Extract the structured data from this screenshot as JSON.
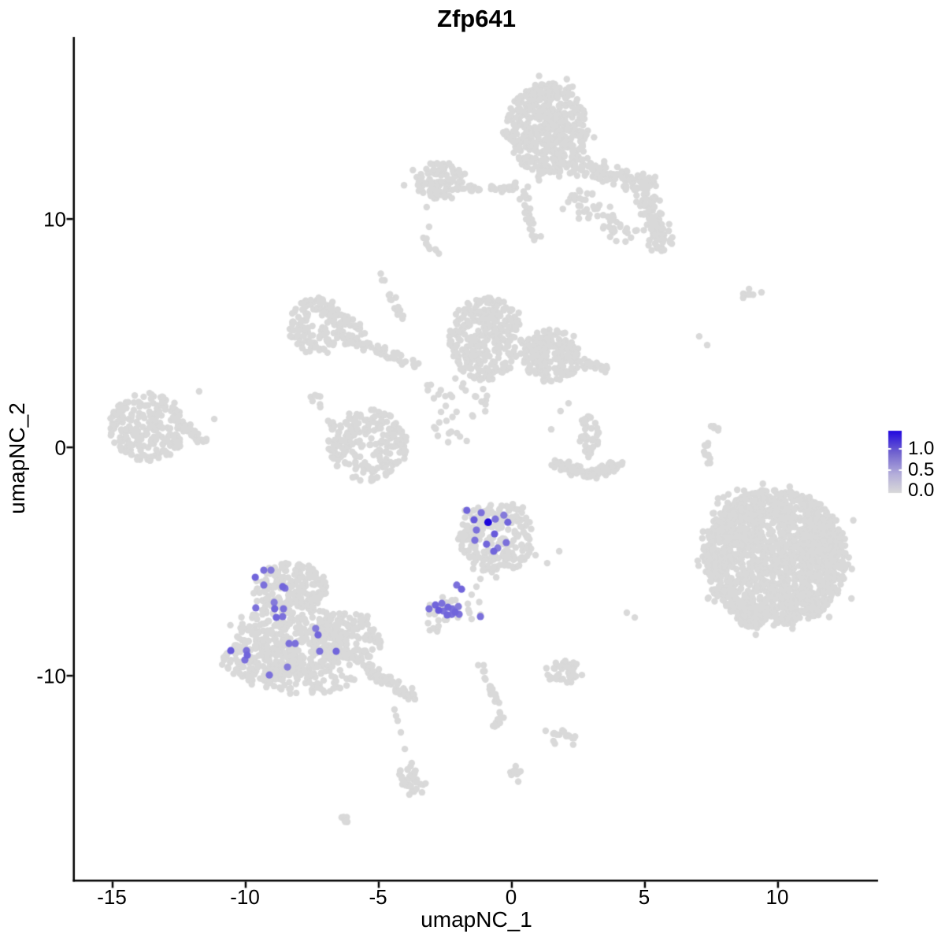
{
  "chart_data": {
    "type": "scatter",
    "title": "Zfp641",
    "x_axis": {
      "label": "umapNC_1",
      "ticks": [
        -15,
        -10,
        -5,
        0,
        5,
        10
      ],
      "tick_labels": [
        "-15",
        "-10",
        "-5",
        "0",
        "5",
        "10"
      ]
    },
    "y_axis": {
      "label": "umapNC_2",
      "ticks": [
        -10,
        0,
        10
      ],
      "tick_labels": [
        "-10",
        "0",
        "10"
      ]
    },
    "xlim": [
      -16.42,
      13.76
    ],
    "ylim": [
      -18.93,
      17.97
    ],
    "grid": false,
    "legend": {
      "position": "right",
      "labels": [
        "1.0",
        "0.5",
        "0.0"
      ],
      "values": [
        1.0,
        0.5,
        0.0
      ],
      "gradient_stops": [
        "#2208E0",
        "#7163CF",
        "#B4AEDA",
        "#D9D9D9"
      ],
      "gradient_positions": [
        0,
        0.35,
        0.7,
        1
      ]
    },
    "colors": {
      "background": "#FFFFFF",
      "axis": "#000000",
      "text": "#000000",
      "point_zero": "#D9D9D9",
      "gradient_low": "#D9D9D9",
      "gradient_high": "#1C06DC"
    },
    "point_radius_px": 4.2,
    "clusters": [
      {
        "name": "top-main",
        "shape": "ellipse",
        "x": 1.33,
        "y": 13.97,
        "rx": 1.54,
        "ry": 2.0,
        "count": 500
      },
      {
        "name": "top-chain-upper",
        "shape": "band",
        "x1": 1.7,
        "y1": 12.6,
        "x2": 5.3,
        "y2": 11.5,
        "width": 0.5,
        "count": 110
      },
      {
        "name": "top-chain-right",
        "shape": "band",
        "x1": 4.9,
        "y1": 11.6,
        "x2": 5.7,
        "y2": 8.6,
        "width": 0.55,
        "count": 110
      },
      {
        "name": "top-chain-mid",
        "shape": "band",
        "x1": 2.2,
        "y1": 11.0,
        "x2": 4.6,
        "y2": 9.2,
        "width": 0.7,
        "count": 55
      },
      {
        "name": "top-left-arm",
        "shape": "ellipse",
        "x": -2.72,
        "y": 11.66,
        "rx": 0.98,
        "ry": 0.85,
        "count": 110
      },
      {
        "name": "top-left-chain",
        "shape": "band",
        "x1": -1.78,
        "y1": 11.38,
        "x2": 0.24,
        "y2": 11.3,
        "width": 0.14,
        "count": 30
      },
      {
        "name": "below-top-trail",
        "shape": "band",
        "x1": 0.3,
        "y1": 11.66,
        "x2": 0.89,
        "y2": 9.07,
        "width": 0.25,
        "count": 30
      },
      {
        "name": "small-streak",
        "shape": "band",
        "x1": -3.46,
        "y1": 9.24,
        "x2": -2.75,
        "y2": 8.45,
        "width": 0.1,
        "count": 9
      },
      {
        "name": "mid-ring-upper",
        "shape": "ring",
        "x": -7.34,
        "y": 5.34,
        "rx": 1.12,
        "ry": 1.31,
        "hole": 0.42,
        "count": 150
      },
      {
        "name": "mid-band1",
        "shape": "band",
        "x1": -6.21,
        "y1": 4.76,
        "x2": -3.55,
        "y2": 3.66,
        "width": 0.3,
        "count": 60
      },
      {
        "name": "mid-band2",
        "shape": "band",
        "x1": -6.45,
        "y1": 5.79,
        "x2": -5.33,
        "y2": 4.93,
        "width": 0.18,
        "count": 18
      },
      {
        "name": "mid-vtrail",
        "shape": "band",
        "x1": -4.97,
        "y1": 7.59,
        "x2": -4.05,
        "y2": 5.52,
        "width": 0.16,
        "count": 16
      },
      {
        "name": "mid-central",
        "shape": "ellipse",
        "x": -0.98,
        "y": 4.76,
        "rx": 1.39,
        "ry": 1.82,
        "count": 320
      },
      {
        "name": "mid-right",
        "shape": "ellipse",
        "x": 1.48,
        "y": 4.0,
        "rx": 1.1,
        "ry": 1.16,
        "count": 200
      },
      {
        "name": "mid-right-arm",
        "shape": "band",
        "x1": 2.51,
        "y1": 3.79,
        "x2": 3.61,
        "y2": 3.31,
        "width": 0.25,
        "count": 26
      },
      {
        "name": "mid-sparse",
        "shape": "ellipse",
        "x": -2.22,
        "y": 1.83,
        "rx": 1.35,
        "ry": 1.7,
        "count": 40
      },
      {
        "name": "mid-ring-lower",
        "shape": "ring",
        "x": -5.41,
        "y": 0.1,
        "rx": 1.5,
        "ry": 1.58,
        "hole": 0.45,
        "count": 230
      },
      {
        "name": "mid-left-dots",
        "shape": "band",
        "x1": -7.46,
        "y1": 2.34,
        "x2": -6.66,
        "y2": 0.79,
        "width": 0.2,
        "count": 12
      },
      {
        "name": "far-left",
        "shape": "ellipse",
        "x": -13.67,
        "y": 0.9,
        "rx": 1.45,
        "ry": 1.5,
        "count": 240
      },
      {
        "name": "far-left-ext",
        "shape": "band",
        "x1": -12.3,
        "y1": 0.79,
        "x2": -11.48,
        "y2": 0.21,
        "width": 0.28,
        "count": 26
      },
      {
        "name": "crescent-left",
        "shape": "band",
        "x1": 1.48,
        "y1": -0.59,
        "x2": 2.81,
        "y2": -1.24,
        "width": 0.28,
        "count": 45
      },
      {
        "name": "crescent-right",
        "shape": "band",
        "x1": 2.81,
        "y1": -1.24,
        "x2": 4.14,
        "y2": -0.72,
        "width": 0.28,
        "count": 45
      },
      {
        "name": "crescent-top",
        "shape": "ellipse",
        "x": 2.9,
        "y": 0.55,
        "rx": 0.4,
        "ry": 0.85,
        "count": 38
      },
      {
        "name": "expr-mid-cluster",
        "shape": "ellipse",
        "x": -0.59,
        "y": -3.97,
        "rx": 1.44,
        "ry": 1.55,
        "count": 230
      },
      {
        "name": "expr-small-cluster",
        "shape": "ellipse",
        "x": -2.13,
        "y": -7.03,
        "rx": 1.1,
        "ry": 0.6,
        "count": 26
      },
      {
        "name": "below-expr-small",
        "shape": "ellipse",
        "x": -2.9,
        "y": -7.79,
        "rx": 0.28,
        "ry": 0.3,
        "count": 8
      },
      {
        "name": "bottomleft-top",
        "shape": "ellipse",
        "x": -8.28,
        "y": -6.1,
        "rx": 1.35,
        "ry": 1.05,
        "count": 160
      },
      {
        "name": "bottomleft-main",
        "shape": "ellipse",
        "x": -8.28,
        "y": -8.34,
        "rx": 2.1,
        "ry": 1.58,
        "count": 300
      },
      {
        "name": "bottomleft-left",
        "shape": "ellipse",
        "x": -9.47,
        "y": -9.38,
        "rx": 1.35,
        "ry": 1.05,
        "count": 130
      },
      {
        "name": "bottomleft-right",
        "shape": "ellipse",
        "x": -6.21,
        "y": -8.34,
        "rx": 1.35,
        "ry": 1.23,
        "count": 160
      },
      {
        "name": "bottomleft-bottom",
        "shape": "ellipse",
        "x": -7.69,
        "y": -10.14,
        "rx": 1.8,
        "ry": 0.7,
        "count": 100
      },
      {
        "name": "bottomleft-tail",
        "shape": "band",
        "x1": -5.62,
        "y1": -9.55,
        "x2": -3.61,
        "y2": -11.03,
        "width": 0.3,
        "count": 80
      },
      {
        "name": "bottom-trail-blob1",
        "shape": "ellipse",
        "x": -3.91,
        "y": -14.24,
        "rx": 0.32,
        "ry": 0.58,
        "count": 22
      },
      {
        "name": "bottom-trail-blob2",
        "shape": "ellipse",
        "x": -3.61,
        "y": -14.86,
        "rx": 0.45,
        "ry": 0.42,
        "count": 16
      },
      {
        "name": "bottom-streak",
        "shape": "band",
        "x1": -6.36,
        "y1": -16.17,
        "x2": -6.07,
        "y2": -16.62,
        "width": 0.1,
        "count": 8
      },
      {
        "name": "mid-bottom-trail1",
        "shape": "band",
        "x1": -1.18,
        "y1": -9.38,
        "x2": -0.41,
        "y2": -11.62,
        "width": 0.14,
        "count": 20
      },
      {
        "name": "mid-bottom-trail2",
        "shape": "band",
        "x1": -0.41,
        "y1": -11.62,
        "x2": -0.65,
        "y2": -12.31,
        "width": 0.14,
        "count": 9
      },
      {
        "name": "mid-bottom-blob",
        "shape": "ellipse",
        "x": 0.24,
        "y": -14.28,
        "rx": 0.3,
        "ry": 0.38,
        "count": 12
      },
      {
        "name": "small-mid-right",
        "shape": "ellipse",
        "x": 1.98,
        "y": -9.83,
        "rx": 0.74,
        "ry": 0.5,
        "count": 42
      },
      {
        "name": "small-mid-right2",
        "shape": "ellipse",
        "x": 1.92,
        "y": -12.79,
        "rx": 0.5,
        "ry": 0.4,
        "count": 15
      },
      {
        "name": "right-main",
        "shape": "ellipse",
        "x": 9.91,
        "y": -4.83,
        "rx": 2.75,
        "ry": 3.0,
        "count": 1500
      },
      {
        "name": "right-lobe-upperleft",
        "shape": "ellipse",
        "x": 8.58,
        "y": -3.34,
        "rx": 0.85,
        "ry": 0.95,
        "count": 110
      },
      {
        "name": "right-lobe-east",
        "shape": "ellipse",
        "x": 11.5,
        "y": -4.2,
        "rx": 0.75,
        "ry": 0.85,
        "count": 110
      },
      {
        "name": "right-bottom-tip",
        "shape": "ellipse",
        "x": 9.02,
        "y": -7.48,
        "rx": 0.6,
        "ry": 0.45,
        "count": 45
      },
      {
        "name": "right-sparse-blob",
        "shape": "ellipse",
        "x": 8.88,
        "y": 6.69,
        "rx": 0.24,
        "ry": 0.26,
        "count": 7
      },
      {
        "name": "right-streak",
        "shape": "band",
        "x1": 7.54,
        "y1": 0.97,
        "x2": 7.78,
        "y2": 0.69,
        "width": 0.08,
        "count": 5
      },
      {
        "name": "right-trail",
        "shape": "band",
        "x1": 7.25,
        "y1": 0.41,
        "x2": 7.4,
        "y2": -0.76,
        "width": 0.1,
        "count": 11
      }
    ],
    "expressing_points": [
      [
        -1.69,
        -2.76,
        0.55
      ],
      [
        -1.15,
        -2.86,
        0.5
      ],
      [
        -1.42,
        -3.17,
        0.6
      ],
      [
        -0.62,
        -3.14,
        0.5
      ],
      [
        -0.3,
        -2.97,
        0.45
      ],
      [
        -0.15,
        -3.28,
        0.55
      ],
      [
        -1.33,
        -3.62,
        0.5
      ],
      [
        -0.65,
        -3.79,
        0.6
      ],
      [
        -1.39,
        -4.07,
        0.5
      ],
      [
        -0.95,
        -4.24,
        0.55
      ],
      [
        -0.21,
        -4.17,
        0.5
      ],
      [
        -0.53,
        -4.41,
        0.45
      ],
      [
        -0.68,
        -4.55,
        0.55
      ],
      [
        -0.89,
        -3.28,
        1.0
      ],
      [
        -2.07,
        -6.03,
        0.5
      ],
      [
        -1.89,
        -6.21,
        0.55
      ],
      [
        -3.11,
        -7.07,
        0.5
      ],
      [
        -2.87,
        -6.9,
        0.55
      ],
      [
        -2.63,
        -6.83,
        0.5
      ],
      [
        -2.75,
        -7.14,
        0.6
      ],
      [
        -2.57,
        -7.17,
        0.5
      ],
      [
        -2.4,
        -7.0,
        0.55
      ],
      [
        -2.25,
        -7.07,
        0.5
      ],
      [
        -2.13,
        -7.21,
        0.55
      ],
      [
        -2.25,
        -7.31,
        0.5
      ],
      [
        -2.01,
        -6.97,
        0.45
      ],
      [
        -2.43,
        -7.34,
        0.55
      ],
      [
        -1.98,
        -7.31,
        0.5
      ],
      [
        -1.18,
        -7.41,
        0.5
      ],
      [
        -9.32,
        -5.38,
        0.5
      ],
      [
        -9.05,
        -5.38,
        0.45
      ],
      [
        -9.64,
        -5.69,
        0.55
      ],
      [
        -9.32,
        -6.03,
        0.5
      ],
      [
        -8.61,
        -6.1,
        0.55
      ],
      [
        -8.52,
        -6.17,
        0.5
      ],
      [
        -8.93,
        -6.79,
        0.45
      ],
      [
        -8.91,
        -7.07,
        0.55
      ],
      [
        -9.62,
        -7.03,
        0.5
      ],
      [
        -8.58,
        -7.07,
        0.5
      ],
      [
        -8.85,
        -7.45,
        0.55
      ],
      [
        -8.61,
        -7.41,
        0.5
      ],
      [
        -7.37,
        -7.93,
        0.45
      ],
      [
        -7.28,
        -8.21,
        0.55
      ],
      [
        -8.37,
        -8.59,
        0.5
      ],
      [
        -8.14,
        -8.59,
        0.5
      ],
      [
        -10.56,
        -8.9,
        0.6
      ],
      [
        -9.97,
        -8.9,
        0.5
      ],
      [
        -9.94,
        -9.1,
        0.55
      ],
      [
        -7.22,
        -8.93,
        0.5
      ],
      [
        -6.6,
        -8.93,
        0.55
      ],
      [
        -10.03,
        -9.31,
        0.5
      ],
      [
        -8.43,
        -9.62,
        0.45
      ],
      [
        -9.11,
        -9.97,
        0.5
      ]
    ],
    "stray_points": [
      [
        -4.05,
        11.48
      ],
      [
        -3.2,
        10.52
      ],
      [
        -3.11,
        9.66
      ],
      [
        -11.75,
        2.45
      ],
      [
        -11.18,
        1.24
      ],
      [
        1.48,
        0.79
      ],
      [
        1.83,
        1.59
      ],
      [
        2.13,
        1.93
      ],
      [
        -1.18,
        -5.76
      ],
      [
        -1.33,
        -6.1
      ],
      [
        -1.51,
        -6.45
      ],
      [
        0.89,
        -4.72
      ],
      [
        1.33,
        -5.07
      ],
      [
        1.78,
        -4.55
      ],
      [
        -4.41,
        -11.48
      ],
      [
        -4.35,
        -11.76
      ],
      [
        -4.29,
        -11.97
      ],
      [
        -4.17,
        -12.48
      ],
      [
        -4.02,
        -13.21
      ],
      [
        1.27,
        -12.41
      ],
      [
        4.32,
        -7.24
      ],
      [
        4.62,
        -7.45
      ],
      [
        8.88,
        6.69
      ],
      [
        9.38,
        6.79
      ],
      [
        7.04,
        4.86
      ],
      [
        7.34,
        4.48
      ],
      [
        10.44,
        -1.72
      ]
    ]
  }
}
